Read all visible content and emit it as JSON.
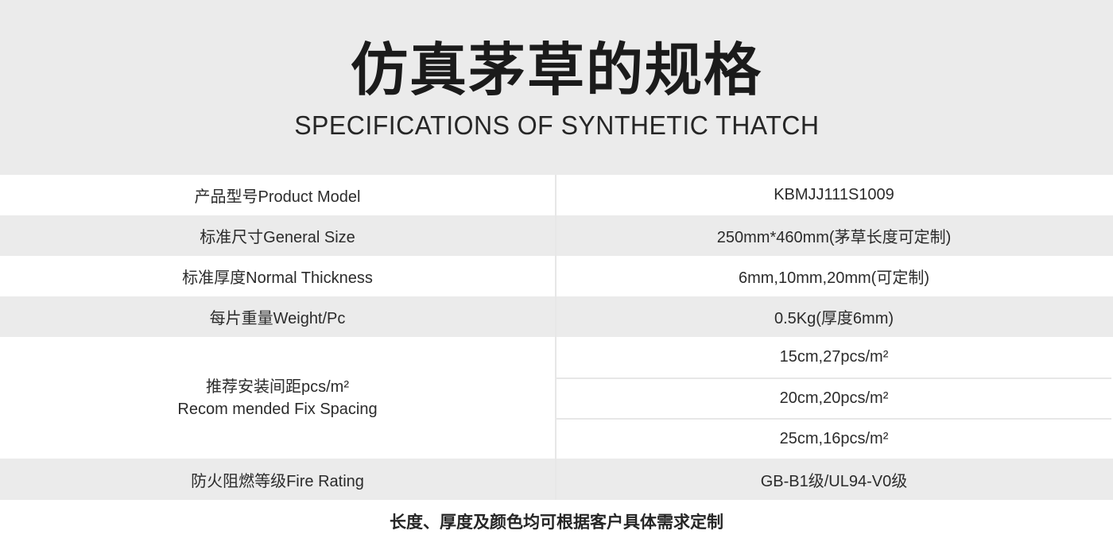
{
  "header": {
    "title": "仿真茅草的规格",
    "subtitle": "SPECIFICATIONS OF SYNTHETIC THATCH"
  },
  "table": {
    "rows": [
      {
        "label": "产品型号Product Model",
        "value": "KBMJJ111S1009"
      },
      {
        "label": "标准尺寸General Size",
        "value": "250mm*460mm(茅草长度可定制)"
      },
      {
        "label": "标准厚度Normal Thickness",
        "value": "6mm,10mm,20mm(可定制)"
      },
      {
        "label": "每片重量Weight/Pc",
        "value": "0.5Kg(厚度6mm)"
      },
      {
        "label_line1": "推荐安装间距pcs/m²",
        "label_line2": "Recom mended Fix Spacing",
        "values": [
          "15cm,27pcs/m²",
          "20cm,20pcs/m²",
          "25cm,16pcs/m²"
        ]
      },
      {
        "label": "防火阻燃等级Fire Rating",
        "value": "GB-B1级/UL94-V0级"
      }
    ]
  },
  "footer": {
    "note": "长度、厚度及颜色均可根据客户具体需求定制"
  },
  "colors": {
    "header_bg": "#ebebeb",
    "row_alt_bg": "#ebebeb",
    "divider": "#e7e7e7",
    "title_color": "#1b1b1b",
    "text_color": "#2b2b2b",
    "page_bg": "#ffffff"
  }
}
